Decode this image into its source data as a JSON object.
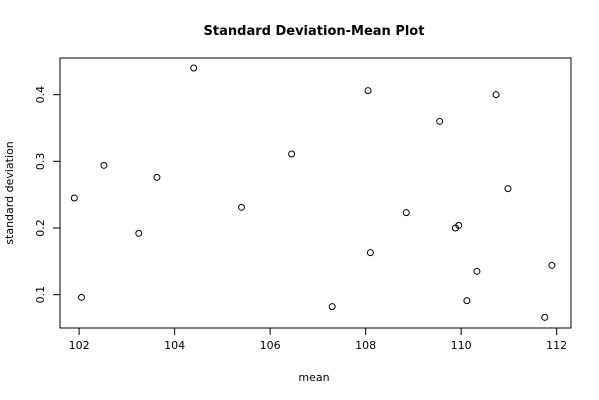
{
  "chart_data": {
    "type": "scatter",
    "title": "Standard Deviation-Mean Plot",
    "xlabel": "mean",
    "ylabel": "standard deviation",
    "xlim": [
      101.6,
      112.3
    ],
    "ylim": [
      0.05,
      0.455
    ],
    "xticks": [
      102,
      104,
      106,
      108,
      110,
      112
    ],
    "xtick_labels": [
      "102",
      "104",
      "106",
      "108",
      "110",
      "112"
    ],
    "yticks": [
      0.1,
      0.2,
      0.3,
      0.4
    ],
    "ytick_labels": [
      "0.1",
      "0.2",
      "0.3",
      "0.4"
    ],
    "grid": false,
    "points": [
      {
        "x": 101.9,
        "y": 0.245
      },
      {
        "x": 102.05,
        "y": 0.096
      },
      {
        "x": 102.52,
        "y": 0.294
      },
      {
        "x": 103.25,
        "y": 0.192
      },
      {
        "x": 103.63,
        "y": 0.276
      },
      {
        "x": 104.4,
        "y": 0.44
      },
      {
        "x": 105.4,
        "y": 0.231
      },
      {
        "x": 106.45,
        "y": 0.311
      },
      {
        "x": 107.3,
        "y": 0.082
      },
      {
        "x": 108.05,
        "y": 0.406
      },
      {
        "x": 108.1,
        "y": 0.163
      },
      {
        "x": 108.85,
        "y": 0.223
      },
      {
        "x": 109.55,
        "y": 0.36
      },
      {
        "x": 109.88,
        "y": 0.2
      },
      {
        "x": 109.95,
        "y": 0.204
      },
      {
        "x": 110.12,
        "y": 0.091
      },
      {
        "x": 110.33,
        "y": 0.135
      },
      {
        "x": 110.73,
        "y": 0.4
      },
      {
        "x": 110.98,
        "y": 0.259
      },
      {
        "x": 111.75,
        "y": 0.066
      },
      {
        "x": 111.9,
        "y": 0.144
      }
    ]
  }
}
